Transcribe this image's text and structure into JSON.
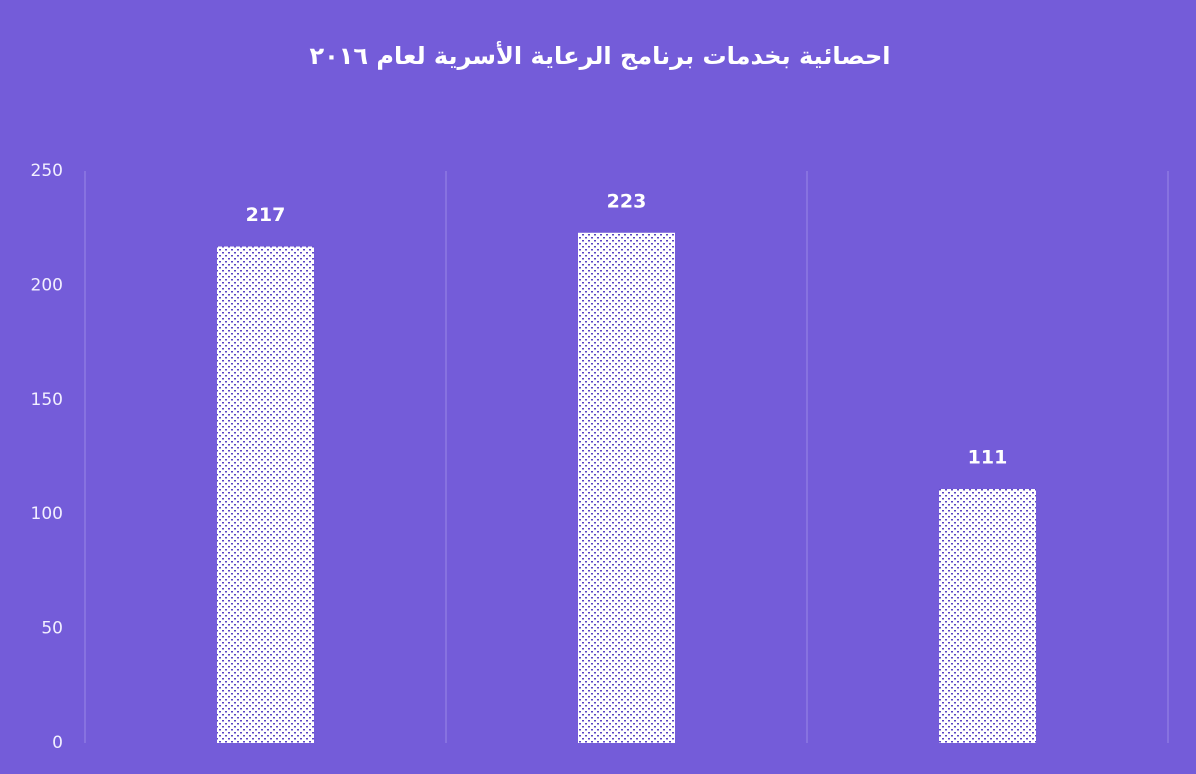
{
  "chart_data": {
    "type": "bar",
    "title": "احصائية بخدمات برنامج الرعاية الأسرية لعام ٢٠١٦",
    "categories": [
      null,
      null,
      null
    ],
    "values": [
      217,
      223,
      111
    ],
    "ylim": [
      0,
      250
    ],
    "yticks": [
      0,
      50,
      100,
      150,
      200,
      250
    ]
  }
}
